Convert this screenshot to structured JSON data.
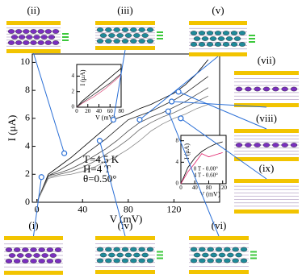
{
  "chart_data": [
    {
      "type": "line",
      "xlabel": "V (mV)",
      "ylabel": "I (μA)",
      "annotations": [
        "T=4.5 K",
        "H=4 T",
        "θ=0.50°"
      ],
      "x": [
        0,
        10,
        20,
        30,
        40,
        50,
        60,
        70,
        80,
        90,
        100,
        110,
        120,
        130,
        140,
        150
      ],
      "xlim": [
        -4,
        160
      ],
      "ylim": [
        0,
        10.6
      ],
      "xticks": [
        0,
        40,
        80,
        120
      ],
      "yticks": [
        0,
        2,
        4,
        6,
        8,
        10
      ],
      "series": [
        {
          "color": "#000000",
          "values": [
            0,
            2.0,
            2.6,
            3.2,
            3.9,
            4.6,
            5.3,
            6.0,
            6.3,
            6.7,
            7.0,
            7.4,
            7.8,
            8.4,
            9.2,
            10.2
          ]
        },
        {
          "color": "#222222",
          "values": [
            0,
            1.9,
            2.3,
            2.8,
            3.3,
            3.9,
            4.5,
            5.2,
            5.9,
            6.2,
            6.5,
            6.9,
            7.3,
            7.8,
            8.4,
            9.0
          ]
        },
        {
          "color": "#444444",
          "values": [
            0,
            1.9,
            2.1,
            2.4,
            2.8,
            3.3,
            3.8,
            4.4,
            5.1,
            5.7,
            6.1,
            6.4,
            6.8,
            7.2,
            7.7,
            8.2
          ]
        },
        {
          "color": "#666666",
          "values": [
            0,
            1.8,
            2.0,
            2.2,
            2.5,
            2.9,
            3.4,
            3.9,
            4.5,
            5.2,
            5.7,
            6.1,
            6.4,
            6.8,
            7.2,
            7.6
          ]
        },
        {
          "color": "#888888",
          "values": [
            0,
            1.7,
            1.9,
            2.0,
            2.2,
            2.5,
            2.9,
            3.3,
            3.8,
            4.4,
            5.1,
            5.6,
            6.0,
            6.3,
            6.7,
            7.0
          ]
        }
      ],
      "points": {
        "color": "#2a6fd6",
        "x": [
          4,
          24,
          55,
          67,
          90,
          115,
          118,
          124,
          126
        ],
        "values": [
          1.8,
          3.5,
          4.4,
          5.9,
          5.9,
          6.5,
          7.2,
          7.9,
          6.0
        ]
      }
    },
    {
      "type": "line",
      "xlabel": "V (mV)",
      "ylabel": "I (μA)",
      "x": [
        0,
        10,
        20,
        30,
        40,
        50,
        60,
        70,
        80
      ],
      "xlim": [
        0,
        80
      ],
      "ylim": [
        0,
        5.5
      ],
      "xticks": [
        0,
        20,
        40,
        60,
        80
      ],
      "yticks": [
        0,
        2,
        4
      ],
      "series": [
        {
          "color": "#000000",
          "values": [
            0,
            0.8,
            1.4,
            2.0,
            2.6,
            3.2,
            3.8,
            4.4,
            5.0
          ]
        },
        {
          "color": "#e0608a",
          "values": [
            0,
            0.5,
            0.9,
            1.3,
            1.8,
            2.3,
            2.9,
            3.5,
            4.2
          ]
        },
        {
          "color": "#333333",
          "values": [
            0,
            0.6,
            1.1,
            1.6,
            2.1,
            2.6,
            3.1,
            3.7,
            4.3
          ]
        }
      ]
    },
    {
      "type": "line",
      "xlabel": "V (mV)",
      "ylabel": "I (μA)",
      "x": [
        0,
        20,
        40,
        60,
        80,
        100,
        120
      ],
      "xlim": [
        0,
        130
      ],
      "ylim": [
        0,
        9
      ],
      "xticks": [
        0,
        40,
        80,
        120
      ],
      "yticks": [
        0,
        4,
        8
      ],
      "series": [
        {
          "name": "0 T - 0.00°",
          "color": "#000000",
          "values": [
            0,
            3.0,
            4.8,
            6.0,
            6.8,
            7.4,
            7.8
          ]
        },
        {
          "name": "4 T - 0.60°",
          "color": "#e0206a",
          "values": [
            0,
            2.2,
            3.8,
            5.6,
            5.0,
            5.4,
            5.8
          ]
        }
      ]
    }
  ],
  "panels": [
    {
      "label": "(ii)",
      "color": "#7a2fbf"
    },
    {
      "label": "(iii)",
      "color": "#1f8a9a"
    },
    {
      "label": "(v)",
      "color": "#1f8a9a"
    },
    {
      "label": "(vii)",
      "color": "#7a2fbf"
    },
    {
      "label": "(viii)",
      "color": "#7a2fbf"
    },
    {
      "label": "(ix)",
      "color": "#7a2fbf"
    },
    {
      "label": "(i)",
      "color": "#7a2fbf"
    },
    {
      "label": "(iv)",
      "color": "#1f8a9a"
    },
    {
      "label": "(vi)",
      "color": "#1f8a9a"
    }
  ]
}
